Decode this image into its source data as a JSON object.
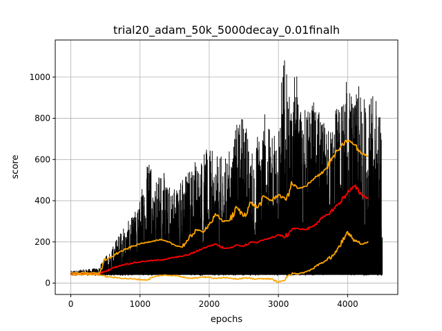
{
  "chart_data": {
    "type": "line",
    "title": "trial20_adam_50k_5000decay_0.01finalh",
    "xlabel": "epochs",
    "ylabel": "score",
    "xlim": [
      -225,
      4725
    ],
    "ylim": [
      -55,
      1180
    ],
    "grid": true,
    "x_ticks": [
      0,
      1000,
      2000,
      3000,
      4000
    ],
    "y_ticks": [
      0,
      200,
      400,
      600,
      800,
      1000
    ],
    "raw_series": {
      "color": "#000000",
      "x_range": [
        0,
        4500
      ],
      "noise_floor": 40,
      "envelope_max": [
        [
          0,
          60
        ],
        [
          400,
          75
        ],
        [
          600,
          180
        ],
        [
          700,
          250
        ],
        [
          900,
          330
        ],
        [
          1000,
          420
        ],
        [
          1150,
          730
        ],
        [
          1200,
          460
        ],
        [
          1300,
          590
        ],
        [
          1400,
          480
        ],
        [
          1600,
          520
        ],
        [
          1800,
          620
        ],
        [
          2000,
          660
        ],
        [
          2100,
          620
        ],
        [
          2250,
          620
        ],
        [
          2500,
          880
        ],
        [
          2600,
          620
        ],
        [
          2800,
          860
        ],
        [
          2900,
          700
        ],
        [
          3000,
          860
        ],
        [
          3080,
          1120
        ],
        [
          3200,
          800
        ],
        [
          3240,
          1080
        ],
        [
          3300,
          900
        ],
        [
          3400,
          850
        ],
        [
          3500,
          900
        ],
        [
          3700,
          750
        ],
        [
          3800,
          860
        ],
        [
          3900,
          900
        ],
        [
          4000,
          1010
        ],
        [
          4100,
          900
        ],
        [
          4150,
          960
        ],
        [
          4300,
          900
        ],
        [
          4430,
          930
        ],
        [
          4500,
          750
        ]
      ]
    },
    "series": [
      {
        "color": "#ff0000",
        "x": [
          0,
          100,
          200,
          300,
          400,
          500,
          600,
          700,
          800,
          900,
          1000,
          1100,
          1200,
          1300,
          1400,
          1500,
          1600,
          1700,
          1800,
          1900,
          2000,
          2100,
          2200,
          2300,
          2400,
          2500,
          2600,
          2700,
          2800,
          2900,
          3000,
          3100,
          3200,
          3300,
          3400,
          3500,
          3600,
          3700,
          3800,
          3900,
          4000,
          4100,
          4200,
          4300
        ],
        "y": [
          45,
          45,
          45,
          45,
          45,
          58,
          72,
          85,
          92,
          98,
          103,
          108,
          110,
          113,
          118,
          125,
          130,
          138,
          152,
          168,
          180,
          190,
          170,
          172,
          186,
          178,
          200,
          196,
          213,
          220,
          235,
          222,
          265,
          263,
          260,
          278,
          308,
          330,
          360,
          395,
          440,
          470,
          430,
          410
        ]
      },
      {
        "color": "#ffa500",
        "x": [
          0,
          100,
          200,
          300,
          400,
          500,
          600,
          700,
          800,
          900,
          1000,
          1100,
          1200,
          1300,
          1400,
          1500,
          1600,
          1700,
          1800,
          1900,
          2000,
          2100,
          2200,
          2300,
          2400,
          2500,
          2600,
          2700,
          2800,
          2900,
          3000,
          3100,
          3200,
          3300,
          3400,
          3500,
          3600,
          3700,
          3800,
          3900,
          4000,
          4100,
          4200,
          4300
        ],
        "y": [
          50,
          50,
          50,
          50,
          50,
          110,
          130,
          150,
          165,
          180,
          190,
          198,
          206,
          210,
          200,
          185,
          175,
          210,
          260,
          250,
          285,
          330,
          300,
          305,
          365,
          325,
          390,
          365,
          420,
          400,
          430,
          405,
          480,
          460,
          470,
          500,
          530,
          560,
          620,
          660,
          695,
          670,
          630,
          615
        ]
      },
      {
        "color": "#ffa500",
        "x": [
          0,
          100,
          200,
          300,
          400,
          500,
          600,
          700,
          800,
          900,
          1000,
          1100,
          1200,
          1300,
          1400,
          1500,
          1600,
          1700,
          1800,
          1900,
          2000,
          2100,
          2200,
          2300,
          2400,
          2500,
          2600,
          2700,
          2800,
          2900,
          3000,
          3100,
          3200,
          3300,
          3400,
          3500,
          3600,
          3700,
          3800,
          3900,
          4000,
          4100,
          4200,
          4300
        ],
        "y": [
          42,
          42,
          42,
          42,
          42,
          32,
          28,
          25,
          22,
          20,
          18,
          15,
          30,
          38,
          38,
          38,
          30,
          25,
          25,
          30,
          28,
          22,
          28,
          25,
          20,
          25,
          22,
          20,
          22,
          20,
          5,
          15,
          50,
          45,
          55,
          70,
          95,
          110,
          140,
          180,
          250,
          210,
          190,
          200
        ]
      }
    ]
  }
}
